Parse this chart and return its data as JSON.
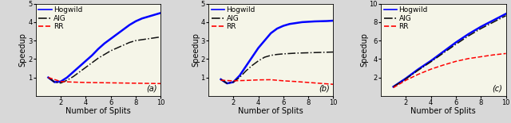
{
  "subplots": [
    {
      "label": "(a)",
      "ylim": [
        0,
        5
      ],
      "yticks": [
        1,
        2,
        3,
        4,
        5
      ],
      "xlim": [
        0,
        10
      ],
      "xticks": [
        2,
        4,
        6,
        8,
        10
      ],
      "hogwild_x": [
        1,
        1.5,
        2,
        2.5,
        3,
        3.5,
        4,
        4.5,
        5,
        5.5,
        6,
        6.5,
        7,
        7.5,
        8,
        8.5,
        9,
        9.5,
        10
      ],
      "hogwild_y": [
        1.0,
        0.75,
        0.78,
        1.0,
        1.3,
        1.6,
        1.9,
        2.2,
        2.55,
        2.85,
        3.1,
        3.35,
        3.6,
        3.85,
        4.05,
        4.2,
        4.3,
        4.4,
        4.5
      ],
      "aig_x": [
        1,
        1.5,
        2,
        2.5,
        3,
        3.5,
        4,
        4.5,
        5,
        5.5,
        6,
        6.5,
        7,
        7.5,
        8,
        8.5,
        9,
        9.5,
        10
      ],
      "aig_y": [
        1.0,
        0.75,
        0.7,
        0.85,
        1.05,
        1.3,
        1.55,
        1.8,
        2.05,
        2.25,
        2.45,
        2.6,
        2.75,
        2.9,
        3.0,
        3.05,
        3.1,
        3.15,
        3.2
      ],
      "rr_x": [
        1,
        2,
        3,
        4,
        5,
        6,
        7,
        8,
        9,
        10
      ],
      "rr_y": [
        1.0,
        0.78,
        0.75,
        0.73,
        0.72,
        0.71,
        0.7,
        0.69,
        0.68,
        0.67
      ]
    },
    {
      "label": "(b)",
      "ylim": [
        0,
        5
      ],
      "yticks": [
        1,
        2,
        3,
        4,
        5
      ],
      "xlim": [
        0,
        10
      ],
      "xticks": [
        2,
        4,
        6,
        8,
        10
      ],
      "hogwild_x": [
        1,
        1.5,
        2,
        2.5,
        3,
        3.5,
        4,
        4.5,
        5,
        5.5,
        6,
        6.5,
        7,
        7.5,
        8,
        8.5,
        9,
        9.5,
        10
      ],
      "hogwild_y": [
        0.9,
        0.68,
        0.75,
        1.1,
        1.6,
        2.1,
        2.6,
        3.0,
        3.4,
        3.65,
        3.8,
        3.9,
        3.95,
        4.0,
        4.02,
        4.04,
        4.05,
        4.06,
        4.08
      ],
      "aig_x": [
        1,
        1.5,
        2,
        2.5,
        3,
        3.5,
        4,
        4.5,
        5,
        5.5,
        6,
        6.5,
        7,
        7.5,
        8,
        8.5,
        9,
        9.5,
        10
      ],
      "aig_y": [
        0.9,
        0.68,
        0.75,
        1.0,
        1.35,
        1.65,
        1.9,
        2.1,
        2.2,
        2.25,
        2.28,
        2.3,
        2.32,
        2.33,
        2.34,
        2.35,
        2.36,
        2.37,
        2.38
      ],
      "rr_x": [
        1,
        2,
        3,
        4,
        5,
        6,
        7,
        8,
        9,
        10
      ],
      "rr_y": [
        0.85,
        0.82,
        0.84,
        0.87,
        0.88,
        0.82,
        0.78,
        0.73,
        0.68,
        0.63
      ]
    },
    {
      "label": "(c)",
      "ylim": [
        0,
        10
      ],
      "yticks": [
        2,
        4,
        6,
        8,
        10
      ],
      "xlim": [
        0,
        10
      ],
      "xticks": [
        2,
        4,
        6,
        8,
        10
      ],
      "hogwild_x": [
        1,
        2,
        3,
        4,
        5,
        6,
        7,
        8,
        9,
        10
      ],
      "hogwild_y": [
        1.0,
        1.9,
        2.9,
        3.8,
        4.8,
        5.8,
        6.7,
        7.5,
        8.2,
        8.9
      ],
      "aig_x": [
        1,
        2,
        3,
        4,
        5,
        6,
        7,
        8,
        9,
        10
      ],
      "aig_y": [
        1.0,
        1.85,
        2.8,
        3.7,
        4.65,
        5.6,
        6.5,
        7.3,
        8.0,
        8.7
      ],
      "rr_x": [
        1,
        2,
        3,
        4,
        5,
        6,
        7,
        8,
        9,
        10
      ],
      "rr_y": [
        0.9,
        1.7,
        2.35,
        2.9,
        3.35,
        3.75,
        4.05,
        4.25,
        4.45,
        4.6
      ]
    }
  ],
  "hogwild_color": "#0000FF",
  "aig_color": "#111111",
  "rr_color": "#FF0000",
  "xlabel": "Number of Splits",
  "ylabel": "Speedup",
  "plot_bg": "#F5F5E8",
  "fig_bg": "#D8D8D8",
  "tick_fontsize": 6,
  "label_fontsize": 7,
  "legend_fontsize": 6.5
}
